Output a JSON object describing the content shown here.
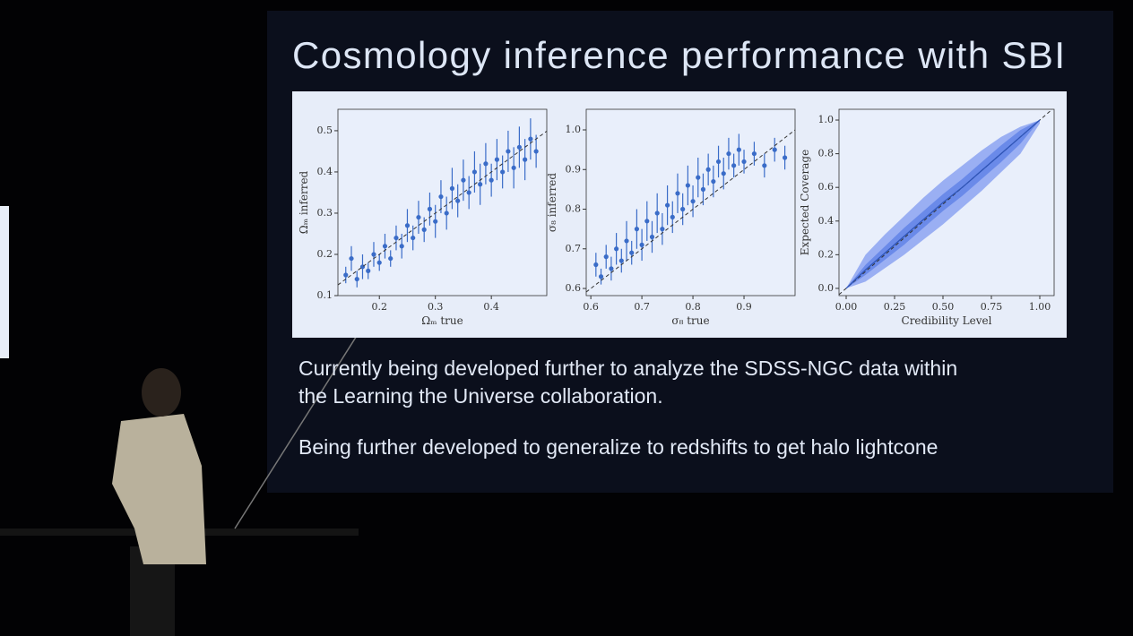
{
  "slide": {
    "title": "Cosmology inference performance with SBI",
    "paragraphs": [
      [
        "Currently being developed further to analyze the SDSS-NGC data within",
        "the Learning the Universe collaboration."
      ],
      [
        "Being further developed to generalize to redshifts to get halo lightcone"
      ]
    ]
  },
  "chart_data": [
    {
      "type": "scatter",
      "x_label": "Ωₘ true",
      "y_label": "Ωₘ inferred",
      "xlim": [
        0.126,
        0.499
      ],
      "ylim": [
        0.1,
        0.552
      ],
      "xticks": [
        0.2,
        0.3,
        0.4
      ],
      "yticks": [
        0.1,
        0.2,
        0.3,
        0.4,
        0.5
      ],
      "series": [
        {
          "color": "#3a6cc8",
          "x": [
            0.14,
            0.15,
            0.16,
            0.17,
            0.18,
            0.19,
            0.2,
            0.21,
            0.22,
            0.23,
            0.24,
            0.25,
            0.26,
            0.27,
            0.28,
            0.29,
            0.3,
            0.31,
            0.32,
            0.33,
            0.34,
            0.35,
            0.36,
            0.37,
            0.38,
            0.39,
            0.4,
            0.41,
            0.42,
            0.43,
            0.44,
            0.45,
            0.46,
            0.47,
            0.48
          ],
          "values": [
            0.15,
            0.19,
            0.14,
            0.17,
            0.16,
            0.2,
            0.18,
            0.22,
            0.19,
            0.24,
            0.22,
            0.27,
            0.24,
            0.29,
            0.26,
            0.31,
            0.28,
            0.34,
            0.3,
            0.36,
            0.33,
            0.38,
            0.35,
            0.4,
            0.37,
            0.42,
            0.38,
            0.43,
            0.4,
            0.45,
            0.41,
            0.46,
            0.43,
            0.48,
            0.45
          ],
          "errors": [
            0.02,
            0.03,
            0.02,
            0.03,
            0.02,
            0.03,
            0.02,
            0.03,
            0.02,
            0.03,
            0.03,
            0.04,
            0.03,
            0.04,
            0.03,
            0.04,
            0.04,
            0.04,
            0.04,
            0.05,
            0.04,
            0.05,
            0.04,
            0.05,
            0.05,
            0.05,
            0.04,
            0.05,
            0.04,
            0.05,
            0.05,
            0.05,
            0.05,
            0.05,
            0.04
          ]
        }
      ]
    },
    {
      "type": "scatter",
      "x_label": "σ₈ true",
      "y_label": "σ₈ inferred",
      "xlim": [
        0.591,
        1.0
      ],
      "ylim": [
        0.582,
        1.052
      ],
      "xticks": [
        0.6,
        0.7,
        0.8,
        0.9
      ],
      "yticks": [
        0.6,
        0.7,
        0.8,
        0.9,
        {
          "value": 1,
          "label": "1.0"
        }
      ],
      "series": [
        {
          "color": "#3a6cc8",
          "x": [
            0.61,
            0.62,
            0.63,
            0.64,
            0.65,
            0.66,
            0.67,
            0.68,
            0.69,
            0.7,
            0.71,
            0.72,
            0.73,
            0.74,
            0.75,
            0.76,
            0.77,
            0.78,
            0.79,
            0.8,
            0.81,
            0.82,
            0.83,
            0.84,
            0.85,
            0.86,
            0.87,
            0.88,
            0.89,
            0.9,
            0.92,
            0.94,
            0.96,
            0.98
          ],
          "values": [
            0.66,
            0.63,
            0.68,
            0.65,
            0.7,
            0.67,
            0.72,
            0.69,
            0.75,
            0.71,
            0.77,
            0.73,
            0.79,
            0.75,
            0.81,
            0.78,
            0.84,
            0.8,
            0.86,
            0.82,
            0.88,
            0.85,
            0.9,
            0.87,
            0.92,
            0.89,
            0.94,
            0.91,
            0.95,
            0.92,
            0.94,
            0.91,
            0.95,
            0.93
          ],
          "errors": [
            0.03,
            0.02,
            0.03,
            0.03,
            0.04,
            0.03,
            0.05,
            0.03,
            0.05,
            0.04,
            0.05,
            0.04,
            0.05,
            0.04,
            0.05,
            0.04,
            0.05,
            0.04,
            0.05,
            0.04,
            0.05,
            0.04,
            0.04,
            0.04,
            0.04,
            0.04,
            0.04,
            0.03,
            0.04,
            0.03,
            0.03,
            0.03,
            0.03,
            0.03
          ]
        }
      ]
    },
    {
      "type": "line",
      "x_label": "Credibility Level",
      "y_label": "Expected Coverage",
      "xlim": [
        -0.037,
        1.074
      ],
      "ylim": [
        -0.043,
        1.064
      ],
      "xticks": [
        {
          "value": 0,
          "label": "0.00"
        },
        0.25,
        {
          "value": 0.5,
          "label": "0.50"
        },
        0.75,
        {
          "value": 1,
          "label": "1.00"
        }
      ],
      "yticks": [
        {
          "value": 0,
          "label": "0.0"
        },
        0.2,
        0.4,
        0.6,
        0.8,
        {
          "value": 1,
          "label": "1.0"
        }
      ],
      "x": [
        0,
        0.1,
        0.2,
        0.3,
        0.4,
        0.5,
        0.6,
        0.7,
        0.8,
        0.9,
        1
      ],
      "series": [
        {
          "color": "#2f55b8",
          "values": [
            0,
            0.11,
            0.21,
            0.31,
            0.41,
            0.51,
            0.6,
            0.7,
            0.8,
            0.9,
            1
          ]
        }
      ],
      "bands": [
        {
          "color": "#7f9af0",
          "lower": [
            0,
            0.04,
            0.12,
            0.2,
            0.29,
            0.38,
            0.48,
            0.58,
            0.69,
            0.8,
            0.98
          ],
          "upper": [
            0,
            0.2,
            0.32,
            0.43,
            0.54,
            0.64,
            0.73,
            0.82,
            0.9,
            0.96,
            1
          ]
        },
        {
          "color": "#5a7de6",
          "lower": [
            0,
            0.08,
            0.17,
            0.26,
            0.36,
            0.46,
            0.55,
            0.65,
            0.75,
            0.86,
            1
          ],
          "upper": [
            0,
            0.14,
            0.25,
            0.36,
            0.46,
            0.56,
            0.65,
            0.75,
            0.85,
            0.94,
            1
          ]
        }
      ]
    }
  ]
}
